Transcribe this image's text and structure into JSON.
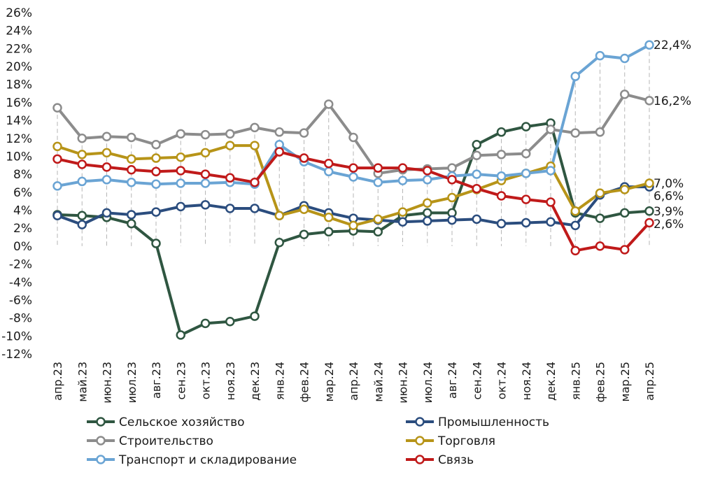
{
  "chart_data": {
    "type": "line",
    "categories": [
      "апр.23",
      "май.23",
      "июн.23",
      "июл.23",
      "авг.23",
      "сен.23",
      "окт.23",
      "ноя.23",
      "дек.23",
      "янв.24",
      "фев.24",
      "мар.24",
      "апр.24",
      "май.24",
      "июн.24",
      "июл.24",
      "авг.24",
      "сен.24",
      "окт.24",
      "ноя.24",
      "дек.24",
      "янв.25",
      "фев.25",
      "мар.25",
      "апр.25"
    ],
    "ylim": [
      -12,
      26
    ],
    "ytick_step": 2,
    "ytick_format": "{v}%",
    "grid": "vertical dashed drop lines",
    "legend_position": "bottom",
    "series": [
      {
        "name": "Сельское хозяйство",
        "color": "#2f5641",
        "values": [
          3.5,
          3.4,
          3.2,
          2.5,
          0.3,
          -9.9,
          -8.6,
          -8.4,
          -7.8,
          0.4,
          1.3,
          1.6,
          1.7,
          1.6,
          3.4,
          3.7,
          3.7,
          11.3,
          12.7,
          13.3,
          13.7,
          3.7,
          3.1,
          3.7,
          3.9
        ]
      },
      {
        "name": "Промышленность",
        "color": "#2b4d7e",
        "values": [
          3.4,
          2.4,
          3.7,
          3.5,
          3.8,
          4.4,
          4.6,
          4.2,
          4.2,
          3.4,
          4.5,
          3.7,
          3.1,
          2.9,
          2.7,
          2.8,
          2.9,
          3.0,
          2.5,
          2.6,
          2.7,
          2.3,
          5.7,
          6.6,
          6.6
        ]
      },
      {
        "name": "Строительство",
        "color": "#8c8c8c",
        "values": [
          15.4,
          12.0,
          12.2,
          12.1,
          11.3,
          12.5,
          12.4,
          12.5,
          13.2,
          12.7,
          12.6,
          15.8,
          12.1,
          8.1,
          8.5,
          8.6,
          8.7,
          10.1,
          10.2,
          10.3,
          13.0,
          12.6,
          12.7,
          16.9,
          16.2
        ]
      },
      {
        "name": "Торговля",
        "color": "#b79418",
        "values": [
          11.1,
          10.2,
          10.4,
          9.7,
          9.8,
          9.9,
          10.4,
          11.2,
          11.2,
          3.4,
          4.1,
          3.2,
          2.3,
          3.0,
          3.8,
          4.8,
          5.4,
          6.3,
          7.3,
          8.1,
          8.9,
          3.9,
          5.9,
          6.3,
          7.0
        ]
      },
      {
        "name": "Транспорт и складирование",
        "color": "#6aa4d4",
        "values": [
          6.7,
          7.2,
          7.4,
          7.1,
          6.9,
          7.0,
          7.0,
          7.1,
          6.9,
          11.3,
          9.4,
          8.3,
          7.7,
          7.1,
          7.3,
          7.4,
          7.8,
          8.0,
          7.8,
          8.1,
          8.4,
          18.9,
          21.2,
          20.9,
          22.4
        ]
      },
      {
        "name": "Связь",
        "color": "#c01a1a",
        "values": [
          9.7,
          9.1,
          8.8,
          8.5,
          8.3,
          8.4,
          8.0,
          7.6,
          7.1,
          10.5,
          9.8,
          9.2,
          8.7,
          8.7,
          8.7,
          8.4,
          7.4,
          6.4,
          5.6,
          5.2,
          4.9,
          -0.5,
          0.0,
          -0.4,
          2.6
        ]
      }
    ],
    "end_labels": [
      {
        "series": "Транспорт и складирование",
        "text": "22,4%"
      },
      {
        "series": "Строительство",
        "text": "16,2%"
      },
      {
        "series": "Торговля",
        "text": "7,0%"
      },
      {
        "series": "Промышленность",
        "text": "6,6%"
      },
      {
        "series": "Сельское хозяйство",
        "text": "3,9%"
      },
      {
        "series": "Связь",
        "text": "2,6%"
      }
    ]
  }
}
